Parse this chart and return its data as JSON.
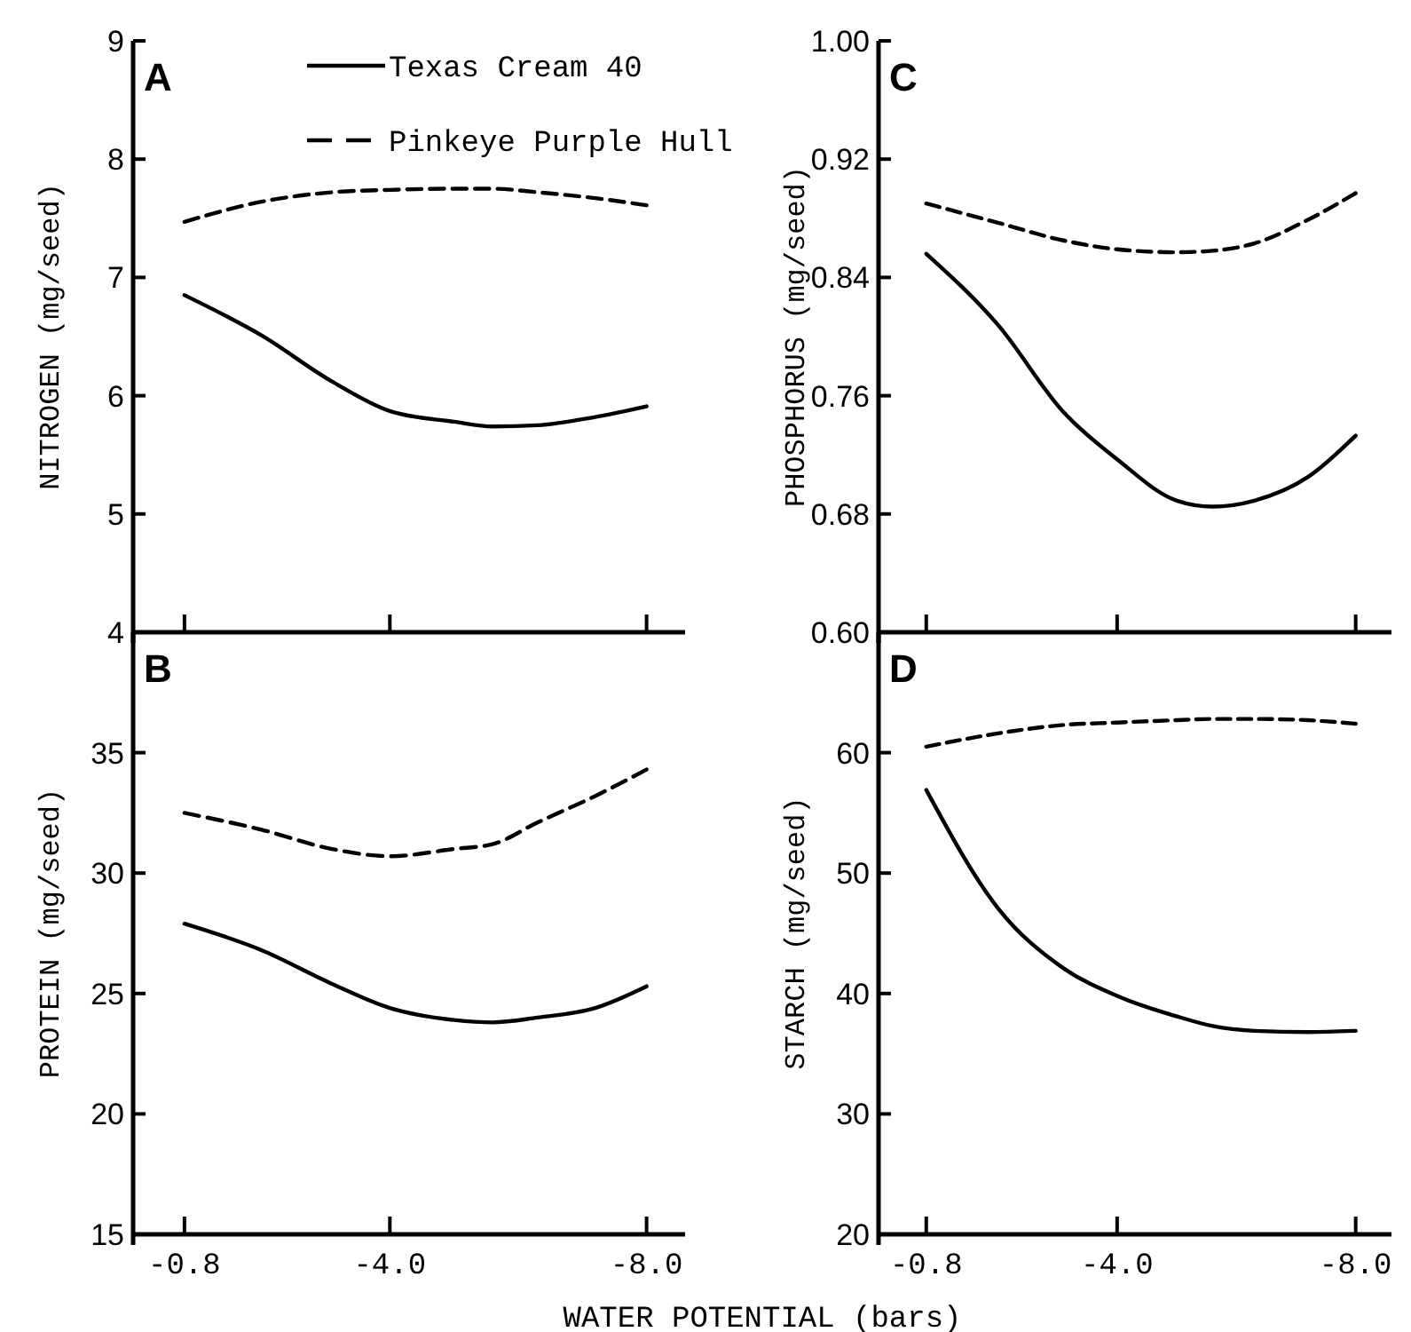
{
  "chart_data": [
    {
      "type": "line",
      "title": "A",
      "ylabel": "NITROGEN (mg/seed)",
      "x": [
        -0.8,
        -2.0,
        -3.1,
        -4.0,
        -5.0,
        -5.6,
        -6.3,
        -7.2,
        -8.0
      ],
      "xlim": [
        0,
        -8.6
      ],
      "xticks": [
        {
          "value": -0.8,
          "label": null
        },
        {
          "value": -4.0,
          "label": null
        },
        {
          "value": -8.0,
          "label": null
        }
      ],
      "ylim": [
        4,
        9
      ],
      "yticks": [
        4,
        5,
        6,
        7,
        8,
        9
      ],
      "tick_labels": "y",
      "legend": "top",
      "marker": "none",
      "series": [
        {
          "name": "Texas Cream 40",
          "color": "#000000",
          "line_style": "solid",
          "values": [
            6.85,
            6.51,
            6.12,
            5.87,
            5.78,
            5.74,
            5.75,
            5.82,
            5.91
          ]
        },
        {
          "name": "Pinkeye Purple Hull",
          "color": "#000000",
          "line_style": "dashed",
          "values": [
            7.47,
            7.64,
            7.72,
            7.74,
            7.75,
            7.75,
            7.72,
            7.67,
            7.61
          ]
        }
      ]
    },
    {
      "type": "line",
      "title": "C",
      "ylabel": "PHOSPHORUS (mg/seed)",
      "x": [
        -0.8,
        -2.0,
        -3.1,
        -4.0,
        -5.0,
        -5.6,
        -6.3,
        -7.2,
        -8.0
      ],
      "xlim": [
        0,
        -8.6
      ],
      "xticks": [
        {
          "value": -0.8,
          "label": null
        },
        {
          "value": -4.0,
          "label": null
        },
        {
          "value": -8.0,
          "label": null
        }
      ],
      "ylim": [
        0.6,
        1.0
      ],
      "yticks": [
        {
          "value": 0.6,
          "label": "0.60"
        },
        {
          "value": 0.68,
          "label": "0.68"
        },
        {
          "value": 0.76,
          "label": "0.76"
        },
        {
          "value": 0.84,
          "label": "0.84"
        },
        {
          "value": 0.92,
          "label": "0.92"
        },
        {
          "value": 1.0,
          "label": "1.00"
        }
      ],
      "tick_labels": "y",
      "marker": "none",
      "series": [
        {
          "color": "#000000",
          "line_style": "solid",
          "values": [
            0.856,
            0.808,
            0.749,
            0.717,
            0.689,
            0.685,
            0.689,
            0.705,
            0.733
          ]
        },
        {
          "color": "#000000",
          "line_style": "dashed",
          "values": [
            0.89,
            0.877,
            0.865,
            0.859,
            0.857,
            0.858,
            0.863,
            0.879,
            0.897
          ]
        }
      ]
    },
    {
      "type": "line",
      "title": "B",
      "ylabel": "PROTEIN (mg/seed)",
      "xlabel": "WATER POTENTIAL (bars)",
      "x": [
        -0.8,
        -2.0,
        -3.1,
        -4.0,
        -5.0,
        -5.6,
        -6.3,
        -7.2,
        -8.0
      ],
      "xlim": [
        0,
        -8.6
      ],
      "xticks": [
        {
          "value": -0.8,
          "label": "-0.8"
        },
        {
          "value": -4.0,
          "label": "-4.0"
        },
        {
          "value": -8.0,
          "label": "-8.0"
        }
      ],
      "ylim": [
        15,
        40
      ],
      "yticks": [
        15,
        20,
        25,
        30,
        35
      ],
      "marker": "none",
      "series": [
        {
          "color": "#000000",
          "line_style": "solid",
          "values": [
            27.9,
            26.8,
            25.4,
            24.4,
            23.9,
            23.8,
            24.0,
            24.4,
            25.3
          ]
        },
        {
          "color": "#000000",
          "line_style": "dashed",
          "values": [
            32.5,
            31.8,
            31.0,
            30.7,
            31.0,
            31.2,
            32.1,
            33.2,
            34.3
          ]
        }
      ]
    },
    {
      "type": "line",
      "title": "D",
      "ylabel": "STARCH (mg/seed)",
      "x": [
        -0.8,
        -2.0,
        -3.1,
        -4.0,
        -5.0,
        -5.6,
        -6.3,
        -7.2,
        -8.0
      ],
      "xlim": [
        0,
        -8.6
      ],
      "xticks": [
        {
          "value": -0.8,
          "label": "-0.8"
        },
        {
          "value": -4.0,
          "label": "-4.0"
        },
        {
          "value": -8.0,
          "label": "-8.0"
        }
      ],
      "ylim": [
        20,
        70
      ],
      "yticks": [
        20,
        30,
        40,
        50,
        60
      ],
      "marker": "none",
      "series": [
        {
          "color": "#000000",
          "line_style": "solid",
          "values": [
            56.9,
            47.1,
            42.1,
            39.8,
            38.1,
            37.3,
            36.9,
            36.8,
            36.9
          ]
        },
        {
          "color": "#000000",
          "line_style": "dashed",
          "values": [
            60.5,
            61.6,
            62.3,
            62.5,
            62.7,
            62.8,
            62.8,
            62.7,
            62.4
          ]
        }
      ]
    }
  ]
}
